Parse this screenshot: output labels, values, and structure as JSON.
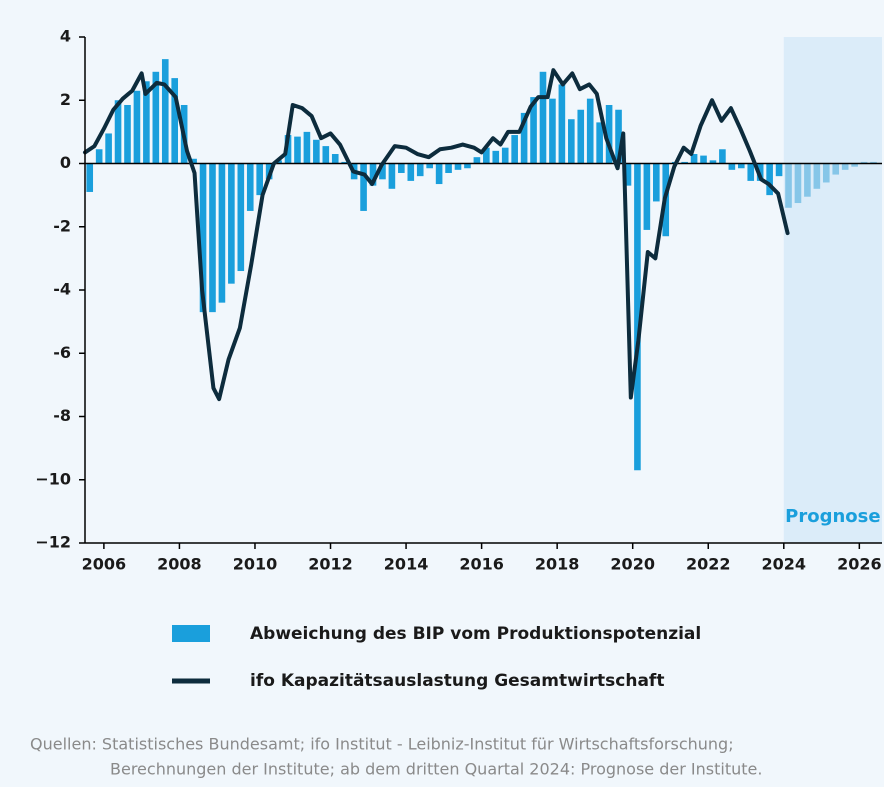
{
  "chart_data": {
    "type": "bar_line",
    "xlim": [
      2005.5,
      2026.6
    ],
    "xticks": [
      2006,
      2008,
      2010,
      2012,
      2014,
      2016,
      2018,
      2020,
      2022,
      2024,
      2026
    ],
    "ylim": [
      -12,
      4
    ],
    "yticks": [
      4,
      2,
      0,
      -2,
      -4,
      -6,
      -8,
      {
        "value": -10,
        "label": "−10"
      },
      {
        "value": -12,
        "label": "−12"
      }
    ],
    "forecast_region": {
      "label": "Prognose",
      "from": 2024
    },
    "series": [
      {
        "name": "Abweichung des BIP vom Produktionspotenzial",
        "type": "bar",
        "color": "#1a9fdc",
        "forecast_color": "#86c6e8",
        "x": [
          2005.625,
          2005.875,
          2006.125,
          2006.375,
          2006.625,
          2006.875,
          2007.125,
          2007.375,
          2007.625,
          2007.875,
          2008.125,
          2008.375,
          2008.625,
          2008.875,
          2009.125,
          2009.375,
          2009.625,
          2009.875,
          2010.125,
          2010.375,
          2010.625,
          2010.875,
          2011.125,
          2011.375,
          2011.625,
          2011.875,
          2012.125,
          2012.375,
          2012.625,
          2012.875,
          2013.125,
          2013.375,
          2013.625,
          2013.875,
          2014.125,
          2014.375,
          2014.625,
          2014.875,
          2015.125,
          2015.375,
          2015.625,
          2015.875,
          2016.125,
          2016.375,
          2016.625,
          2016.875,
          2017.125,
          2017.375,
          2017.625,
          2017.875,
          2018.125,
          2018.375,
          2018.625,
          2018.875,
          2019.125,
          2019.375,
          2019.625,
          2019.875,
          2020.125,
          2020.375,
          2020.625,
          2020.875,
          2021.125,
          2021.375,
          2021.625,
          2021.875,
          2022.125,
          2022.375,
          2022.625,
          2022.875,
          2023.125,
          2023.375,
          2023.625,
          2023.875,
          2024.125,
          2024.375,
          2024.625,
          2024.875,
          2025.125,
          2025.375,
          2025.625,
          2025.875,
          2026.125,
          2026.375
        ],
        "values": [
          -0.9,
          0.45,
          0.95,
          2.0,
          1.85,
          2.3,
          2.6,
          2.9,
          3.3,
          2.7,
          1.85,
          0.15,
          -4.7,
          -4.7,
          -4.4,
          -3.8,
          -3.4,
          -1.5,
          -1.0,
          -0.5,
          0.1,
          0.9,
          0.85,
          1.0,
          0.75,
          0.55,
          0.3,
          0.05,
          -0.5,
          -1.5,
          -0.7,
          -0.5,
          -0.8,
          -0.3,
          -0.55,
          -0.4,
          -0.15,
          -0.65,
          -0.3,
          -0.2,
          -0.15,
          0.2,
          0.5,
          0.4,
          0.5,
          0.9,
          1.6,
          2.1,
          2.9,
          2.05,
          2.5,
          1.4,
          1.7,
          2.05,
          1.3,
          1.85,
          1.7,
          -0.7,
          -9.7,
          -2.1,
          -1.2,
          -2.3,
          0.05,
          0.05,
          0.3,
          0.25,
          0.1,
          0.45,
          -0.2,
          -0.15,
          -0.55,
          -0.55,
          -1.0,
          -0.4,
          -1.4,
          -1.25,
          -1.05,
          -0.8,
          -0.6,
          -0.35,
          -0.2,
          -0.1,
          0.05,
          0.05
        ]
      },
      {
        "name": "ifo Kapazitätsauslastung Gesamtwirtschaft",
        "type": "line",
        "color": "#0d2c3d",
        "x": [
          2005.5,
          2005.75,
          2006.0,
          2006.25,
          2006.5,
          2006.75,
          2007.0,
          2007.1,
          2007.4,
          2007.6,
          2007.9,
          2008.2,
          2008.4,
          2008.6,
          2008.9,
          2009.05,
          2009.3,
          2009.6,
          2009.9,
          2010.2,
          2010.5,
          2010.8,
          2011.0,
          2011.25,
          2011.5,
          2011.75,
          2012.0,
          2012.25,
          2012.6,
          2012.9,
          2013.1,
          2013.35,
          2013.7,
          2014.0,
          2014.3,
          2014.6,
          2014.9,
          2015.2,
          2015.5,
          2015.8,
          2016.0,
          2016.3,
          2016.5,
          2016.7,
          2017.0,
          2017.3,
          2017.5,
          2017.75,
          2017.9,
          2018.15,
          2018.4,
          2018.6,
          2018.85,
          2019.05,
          2019.3,
          2019.6,
          2019.75,
          2019.95,
          2020.15,
          2020.4,
          2020.6,
          2020.85,
          2021.1,
          2021.35,
          2021.55,
          2021.8,
          2022.1,
          2022.35,
          2022.6,
          2022.85,
          2023.1,
          2023.4,
          2023.6,
          2023.85,
          2024.1
        ],
        "values": [
          0.35,
          0.55,
          1.1,
          1.7,
          2.05,
          2.3,
          2.85,
          2.2,
          2.55,
          2.5,
          2.1,
          0.4,
          -0.3,
          -4.0,
          -7.1,
          -7.45,
          -6.2,
          -5.2,
          -3.2,
          -1.0,
          0,
          0.3,
          1.85,
          1.75,
          1.5,
          0.8,
          0.95,
          0.6,
          -0.25,
          -0.35,
          -0.65,
          -0.05,
          0.55,
          0.5,
          0.3,
          0.2,
          0.45,
          0.5,
          0.6,
          0.5,
          0.35,
          0.8,
          0.6,
          1.0,
          1.0,
          1.8,
          2.1,
          2.1,
          2.95,
          2.5,
          2.85,
          2.35,
          2.5,
          2.2,
          0.8,
          -0.15,
          0.95,
          -7.4,
          -5.6,
          -2.8,
          -3.0,
          -1.1,
          -0.1,
          0.5,
          0.3,
          1.2,
          2.0,
          1.35,
          1.75,
          1.1,
          0.4,
          -0.5,
          -0.65,
          -0.95,
          -2.2
        ]
      }
    ],
    "source": [
      "Quellen: Statistisches Bundesamt; ifo Institut - Leibniz-Institut für Wirtschaftsforschung;",
      "Berechnungen der Institute; ab dem dritten Quartal 2024: Prognose der Institute."
    ]
  }
}
